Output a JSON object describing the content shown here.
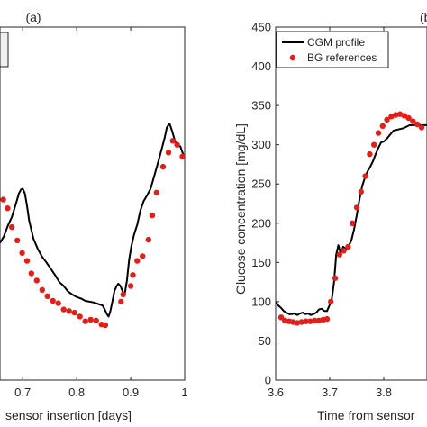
{
  "chart_data": [
    {
      "panel": "(a)",
      "type": "line",
      "xlabel": "sensor insertion [days]",
      "xlim": [
        0.658,
        1.0
      ],
      "ylim": [
        0,
        450
      ],
      "xticks": [
        0.7,
        0.8,
        0.9,
        1
      ],
      "xtick_labels": [
        "0.7",
        "0.8",
        "0.9",
        "1"
      ],
      "series": [
        {
          "name": "CGM profile",
          "kind": "line",
          "color": "#000000",
          "x": [
            0.658,
            0.665,
            0.672,
            0.68,
            0.688,
            0.693,
            0.697,
            0.7,
            0.704,
            0.708,
            0.712,
            0.72,
            0.728,
            0.736,
            0.744,
            0.752,
            0.76,
            0.768,
            0.776,
            0.784,
            0.792,
            0.8,
            0.808,
            0.816,
            0.824,
            0.832,
            0.84,
            0.848,
            0.852,
            0.856,
            0.859,
            0.862,
            0.866,
            0.87,
            0.874,
            0.877,
            0.881,
            0.885,
            0.889,
            0.893,
            0.897,
            0.901,
            0.906,
            0.912,
            0.918,
            0.924,
            0.93,
            0.937,
            0.944,
            0.951,
            0.958,
            0.963,
            0.967,
            0.972,
            0.977,
            0.982,
            0.987,
            0.992,
            0.996,
            1.0
          ],
          "y": [
            175,
            183,
            196,
            208,
            226,
            238,
            243,
            244,
            238,
            222,
            203,
            180,
            167,
            157,
            150,
            142,
            134,
            125,
            120,
            113,
            109,
            106,
            104,
            101,
            100,
            99,
            97,
            95,
            90,
            84,
            81,
            87,
            100,
            114,
            120,
            123,
            120,
            113,
            110,
            127,
            153,
            170,
            185,
            198,
            216,
            228,
            235,
            244,
            261,
            278,
            296,
            309,
            322,
            327,
            317,
            305,
            298,
            298,
            290,
            284
          ]
        },
        {
          "name": "BG references",
          "kind": "scatter",
          "color": "#e0201b",
          "x": [
            0.664,
            0.672,
            0.68,
            0.69,
            0.699,
            0.708,
            0.716,
            0.726,
            0.736,
            0.746,
            0.756,
            0.766,
            0.776,
            0.786,
            0.796,
            0.806,
            0.816,
            0.826,
            0.836,
            0.846,
            0.853,
            0.882,
            0.886,
            0.9,
            0.904,
            0.912,
            0.922,
            0.933,
            0.94,
            0.948,
            0.96,
            0.97,
            0.978,
            0.986,
            0.996
          ],
          "y": [
            230,
            219,
            195,
            178,
            162,
            152,
            136,
            127,
            115,
            107,
            101,
            98,
            90,
            88,
            86,
            81,
            75,
            77,
            76,
            71,
            70,
            100,
            109,
            120,
            134,
            152,
            158,
            179,
            210,
            239,
            272,
            290,
            305,
            300,
            285
          ]
        }
      ]
    },
    {
      "panel": "(b)",
      "type": "line",
      "xlabel": "Time from sensor",
      "ylabel": "Glucose concentration [mg/dL]",
      "xlim": [
        3.6,
        3.88
      ],
      "ylim": [
        0,
        450
      ],
      "xticks": [
        3.6,
        3.7,
        3.8
      ],
      "xtick_labels": [
        "3.6",
        "3.7",
        "3.8"
      ],
      "yticks": [
        0,
        50,
        100,
        150,
        200,
        250,
        300,
        350,
        400,
        450
      ],
      "ytick_labels": [
        "0",
        "50",
        "100",
        "150",
        "200",
        "250",
        "300",
        "350",
        "400",
        "450"
      ],
      "legend": {
        "placement": "top-left"
      },
      "series": [
        {
          "name": "CGM profile",
          "kind": "line",
          "color": "#000000",
          "x": [
            3.6,
            3.605,
            3.61,
            3.615,
            3.62,
            3.625,
            3.63,
            3.635,
            3.64,
            3.645,
            3.65,
            3.655,
            3.66,
            3.665,
            3.67,
            3.675,
            3.68,
            3.685,
            3.69,
            3.695,
            3.7,
            3.704,
            3.708,
            3.712,
            3.716,
            3.72,
            3.725,
            3.73,
            3.735,
            3.74,
            3.745,
            3.75,
            3.755,
            3.76,
            3.765,
            3.77,
            3.775,
            3.78,
            3.785,
            3.79,
            3.795,
            3.8,
            3.806,
            3.812,
            3.818,
            3.824,
            3.83,
            3.836,
            3.842,
            3.848,
            3.854,
            3.86,
            3.866,
            3.872,
            3.878,
            3.88
          ],
          "y": [
            100,
            95,
            92,
            88,
            86,
            84,
            84,
            85,
            83,
            85,
            86,
            84,
            85,
            83,
            84,
            86,
            90,
            91,
            88,
            88,
            96,
            104,
            125,
            160,
            172,
            162,
            170,
            167,
            171,
            178,
            192,
            210,
            230,
            247,
            258,
            266,
            272,
            279,
            288,
            296,
            303,
            304,
            308,
            313,
            318,
            319,
            320,
            321,
            323,
            325,
            325,
            325,
            325,
            325,
            325,
            325
          ]
        },
        {
          "name": "BG references",
          "kind": "scatter",
          "color": "#e0201b",
          "x": [
            3.61,
            3.617,
            3.625,
            3.632,
            3.64,
            3.648,
            3.656,
            3.664,
            3.672,
            3.68,
            3.688,
            3.695,
            3.702,
            3.71,
            3.718,
            3.726,
            3.734,
            3.742,
            3.75,
            3.758,
            3.766,
            3.774,
            3.782,
            3.79,
            3.798,
            3.806,
            3.814,
            3.822,
            3.83,
            3.838,
            3.846,
            3.854,
            3.862,
            3.87
          ],
          "y": [
            80,
            76,
            75,
            74,
            73,
            74,
            75,
            75,
            76,
            76,
            77,
            78,
            100,
            130,
            160,
            165,
            170,
            200,
            220,
            240,
            260,
            288,
            300,
            315,
            324,
            332,
            336,
            338,
            339,
            337,
            334,
            330,
            326,
            322
          ]
        }
      ]
    }
  ]
}
